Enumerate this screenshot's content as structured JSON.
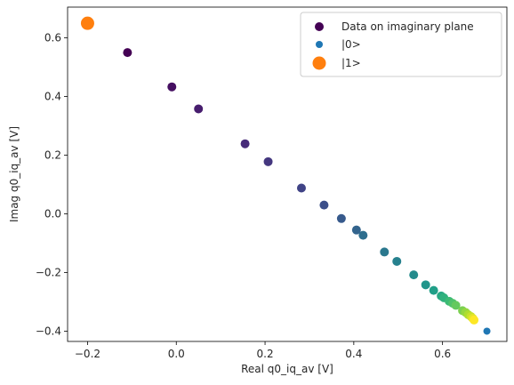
{
  "chart_data": {
    "type": "scatter",
    "xlabel": "Real q0_iq_av [V]",
    "ylabel": "Imag q0_iq_av [V]",
    "xlim": [
      -0.245,
      0.745
    ],
    "ylim": [
      -0.435,
      0.705
    ],
    "xticks": [
      -0.2,
      0.0,
      0.2,
      0.4,
      0.6
    ],
    "xtick_labels": [
      "−0.2",
      "0.0",
      "0.2",
      "0.4",
      "0.6"
    ],
    "yticks": [
      -0.4,
      -0.2,
      0.0,
      0.2,
      0.4,
      0.6
    ],
    "ytick_labels": [
      "−0.4",
      "−0.2",
      "0.0",
      "0.2",
      "0.4",
      "0.6"
    ],
    "grid": false,
    "legend_position": "top-right",
    "legend": [
      {
        "label": "Data on imaginary plane",
        "color": "#440154",
        "marker": "circle"
      },
      {
        "label": "|0>",
        "color": "#1f77b4",
        "marker": "circle-small"
      },
      {
        "label": "|1>",
        "color": "#ff7f0e",
        "marker": "circle-large"
      }
    ],
    "series": [
      {
        "name": "Data on imaginary plane",
        "colormap": "viridis",
        "x": [
          -0.11,
          -0.01,
          0.05,
          0.155,
          0.207,
          0.282,
          0.333,
          0.372,
          0.406,
          0.421,
          0.469,
          0.497,
          0.535,
          0.562,
          0.58,
          0.597,
          0.603,
          0.615,
          0.623,
          0.63,
          0.645,
          0.652,
          0.658,
          0.664,
          0.668,
          0.671
        ],
        "y": [
          0.55,
          0.433,
          0.358,
          0.239,
          0.178,
          0.088,
          0.03,
          -0.016,
          -0.055,
          -0.073,
          -0.13,
          -0.162,
          -0.208,
          -0.242,
          -0.261,
          -0.28,
          -0.286,
          -0.298,
          -0.305,
          -0.312,
          -0.33,
          -0.336,
          -0.344,
          -0.35,
          -0.356,
          -0.362
        ]
      },
      {
        "name": "|0>",
        "color": "#1f77b4",
        "x": [
          0.7
        ],
        "y": [
          -0.4
        ]
      },
      {
        "name": "|1>",
        "color": "#ff7f0e",
        "x": [
          -0.2
        ],
        "y": [
          0.65
        ]
      }
    ]
  }
}
